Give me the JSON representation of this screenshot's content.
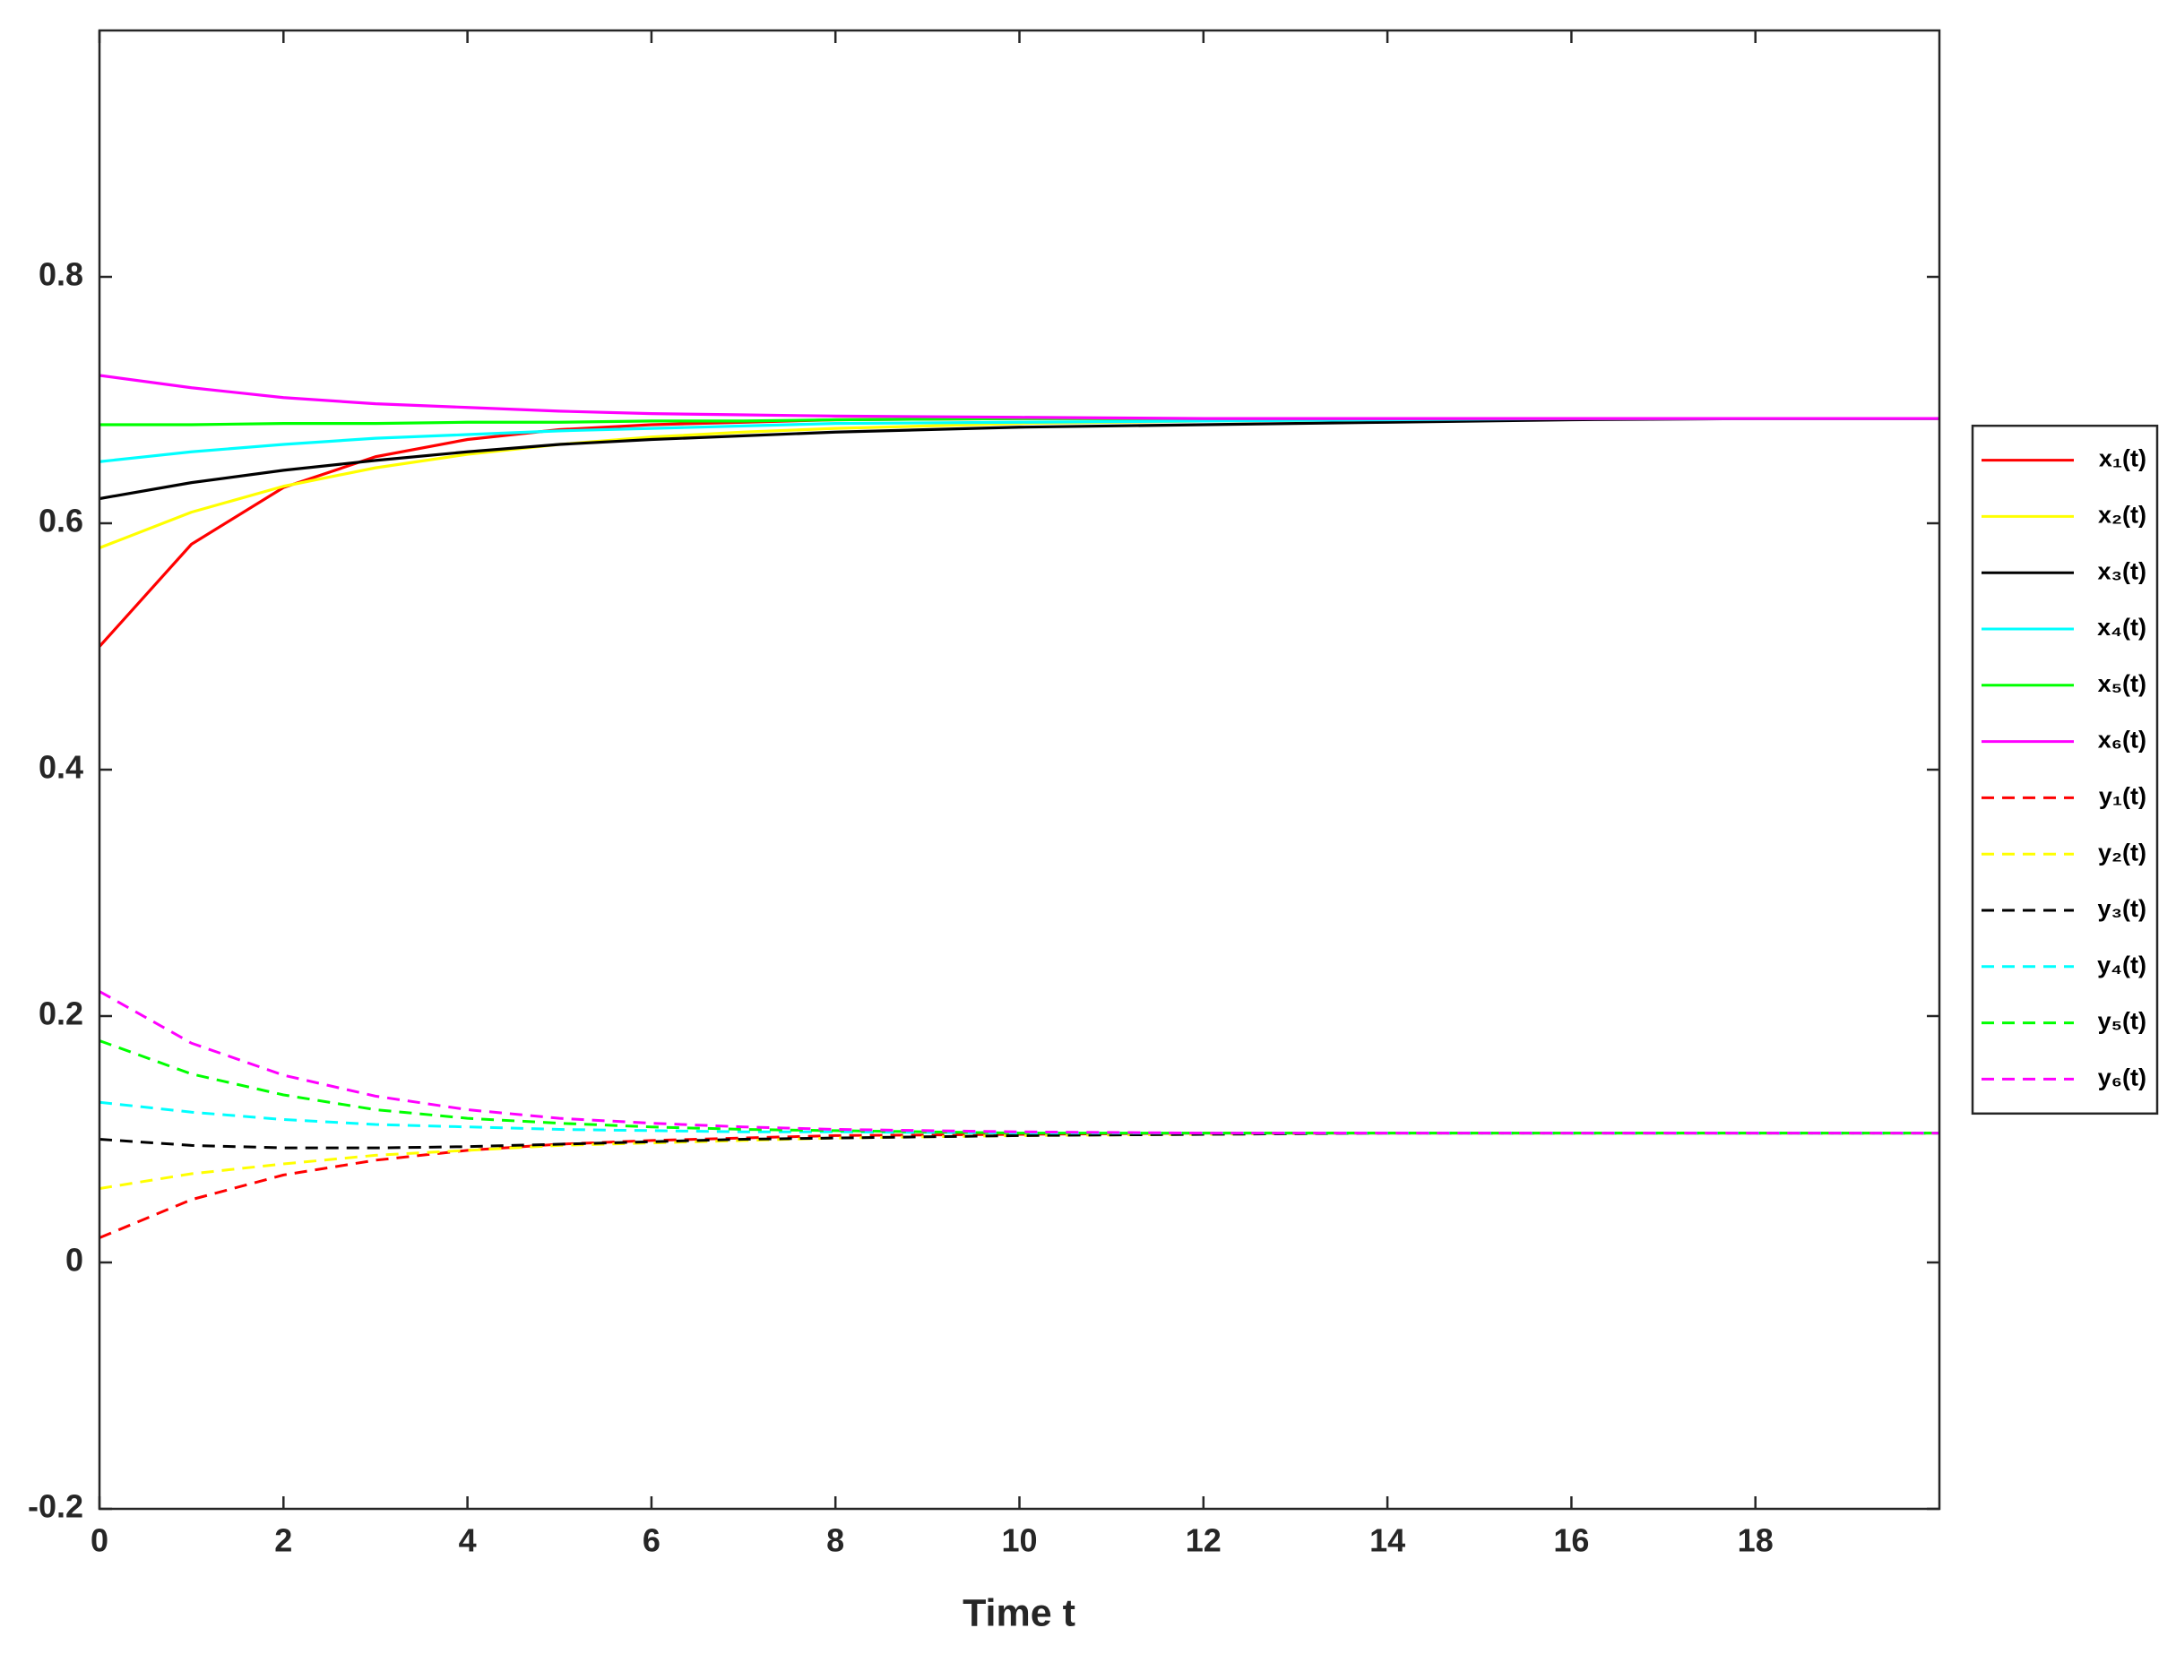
{
  "chart_data": {
    "type": "line",
    "x_label": "Time t",
    "x": [
      0,
      1,
      2,
      3,
      4,
      5,
      6,
      7,
      8,
      10,
      12,
      14,
      16,
      18,
      20
    ],
    "xlim": [
      0,
      20
    ],
    "xticks": [
      0,
      2,
      4,
      6,
      8,
      10,
      12,
      14,
      16,
      18
    ],
    "ylim": [
      -0.2,
      1
    ],
    "yticks": [
      -0.2,
      0,
      0.2,
      0.4,
      0.6,
      0.8
    ],
    "grid": false,
    "legend": "right",
    "series": [
      {
        "name": "x₁(t)",
        "color": "#ff0000",
        "linestyle": "solid",
        "values": [
          0.5,
          0.583,
          0.629,
          0.654,
          0.668,
          0.676,
          0.68,
          0.682,
          0.684,
          0.685,
          0.685,
          0.685,
          0.685,
          0.685,
          0.685
        ]
      },
      {
        "name": "x₂(t)",
        "color": "#ffff00",
        "linestyle": "solid",
        "values": [
          0.58,
          0.609,
          0.63,
          0.645,
          0.656,
          0.664,
          0.67,
          0.674,
          0.677,
          0.681,
          0.683,
          0.684,
          0.685,
          0.685,
          0.685
        ]
      },
      {
        "name": "x₃(t)",
        "color": "#000000",
        "linestyle": "solid",
        "values": [
          0.62,
          0.633,
          0.643,
          0.651,
          0.658,
          0.664,
          0.668,
          0.671,
          0.674,
          0.678,
          0.68,
          0.682,
          0.684,
          0.685,
          0.685
        ]
      },
      {
        "name": "x₄(t)",
        "color": "#00ffff",
        "linestyle": "solid",
        "values": [
          0.65,
          0.658,
          0.664,
          0.669,
          0.672,
          0.675,
          0.677,
          0.679,
          0.681,
          0.682,
          0.683,
          0.684,
          0.685,
          0.685,
          0.685
        ]
      },
      {
        "name": "x₅(t)",
        "color": "#00ff00",
        "linestyle": "solid",
        "values": [
          0.68,
          0.68,
          0.681,
          0.681,
          0.682,
          0.682,
          0.683,
          0.683,
          0.684,
          0.685,
          0.685,
          0.685,
          0.685,
          0.685,
          0.685
        ]
      },
      {
        "name": "x₆(t)",
        "color": "#ff00ff",
        "linestyle": "solid",
        "values": [
          0.72,
          0.71,
          0.702,
          0.697,
          0.694,
          0.691,
          0.689,
          0.688,
          0.687,
          0.686,
          0.685,
          0.685,
          0.685,
          0.685,
          0.685
        ]
      },
      {
        "name": "y₁(t)",
        "color": "#ff0000",
        "linestyle": "dashed",
        "values": [
          0.02,
          0.051,
          0.071,
          0.083,
          0.091,
          0.096,
          0.099,
          0.101,
          0.103,
          0.104,
          0.105,
          0.105,
          0.105,
          0.105,
          0.105
        ]
      },
      {
        "name": "y₂(t)",
        "color": "#ffff00",
        "linestyle": "dashed",
        "values": [
          0.06,
          0.072,
          0.08,
          0.087,
          0.091,
          0.095,
          0.097,
          0.099,
          0.101,
          0.103,
          0.104,
          0.105,
          0.105,
          0.105,
          0.105
        ]
      },
      {
        "name": "y₃(t)",
        "color": "#000000",
        "linestyle": "dashed",
        "values": [
          0.1,
          0.095,
          0.093,
          0.093,
          0.094,
          0.096,
          0.098,
          0.1,
          0.101,
          0.103,
          0.104,
          0.105,
          0.105,
          0.105,
          0.105
        ]
      },
      {
        "name": "y₄(t)",
        "color": "#00ffff",
        "linestyle": "dashed",
        "values": [
          0.13,
          0.122,
          0.116,
          0.112,
          0.11,
          0.108,
          0.107,
          0.106,
          0.106,
          0.105,
          0.105,
          0.105,
          0.105,
          0.105,
          0.105
        ]
      },
      {
        "name": "y₅(t)",
        "color": "#00ff00",
        "linestyle": "dashed",
        "values": [
          0.18,
          0.153,
          0.136,
          0.124,
          0.117,
          0.113,
          0.11,
          0.108,
          0.107,
          0.105,
          0.105,
          0.105,
          0.105,
          0.105,
          0.105
        ]
      },
      {
        "name": "y₆(t)",
        "color": "#ff00ff",
        "linestyle": "dashed",
        "values": [
          0.22,
          0.178,
          0.152,
          0.135,
          0.124,
          0.117,
          0.113,
          0.11,
          0.108,
          0.106,
          0.105,
          0.105,
          0.105,
          0.105,
          0.105
        ]
      }
    ]
  }
}
